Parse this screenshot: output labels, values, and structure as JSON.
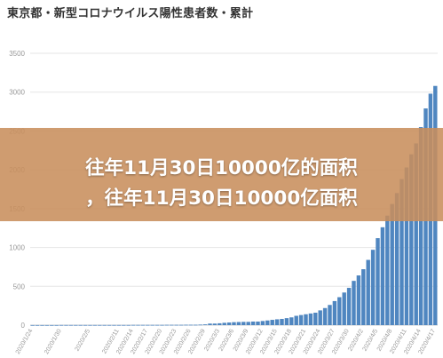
{
  "page": {
    "title": "東京都・新型コロナウイルス陽性患者数・累計"
  },
  "overlay": {
    "line1": "往年11月30日10000亿的面积",
    "line2": "，往年11月30日10000亿面积"
  },
  "colors": {
    "bar": "#4f86c0",
    "overlay": "#c88e5c",
    "grid": "#e6e6e6"
  },
  "chart_data": {
    "type": "bar",
    "title": "東京都・新型コロナウイルス陽性患者数・累計",
    "xlabel": "",
    "ylabel": "",
    "ylim": [
      0,
      3500
    ],
    "yticks": [
      0,
      500,
      1000,
      1500,
      2000,
      2500,
      3000,
      3500
    ],
    "grid": true,
    "x_tick_labels": [
      "2020/1/24",
      "2020/1/30",
      "2020/2/5",
      "2020/2/11",
      "2020/2/14",
      "2020/2/17",
      "2020/2/20",
      "2020/2/23",
      "2020/2/26",
      "2020/2/29",
      "2020/3/3",
      "2020/3/6",
      "2020/3/9",
      "2020/3/12",
      "2020/3/15",
      "2020/3/18",
      "2020/3/21",
      "2020/3/24",
      "2020/3/27",
      "2020/3/30",
      "2020/4/2",
      "2020/4/5",
      "2020/4/8",
      "2020/4/11",
      "2020/4/14",
      "2020/4/17"
    ],
    "categories": [
      "2020/1/24",
      "2020/1/25",
      "2020/1/26",
      "2020/1/27",
      "2020/1/28",
      "2020/1/29",
      "2020/1/30",
      "2020/1/31",
      "2020/2/1",
      "2020/2/2",
      "2020/2/3",
      "2020/2/4",
      "2020/2/5",
      "2020/2/6",
      "2020/2/7",
      "2020/2/8",
      "2020/2/9",
      "2020/2/10",
      "2020/2/11",
      "2020/2/12",
      "2020/2/13",
      "2020/2/14",
      "2020/2/15",
      "2020/2/16",
      "2020/2/17",
      "2020/2/18",
      "2020/2/19",
      "2020/2/20",
      "2020/2/21",
      "2020/2/22",
      "2020/2/23",
      "2020/2/24",
      "2020/2/25",
      "2020/2/26",
      "2020/2/27",
      "2020/2/28",
      "2020/2/29",
      "2020/3/1",
      "2020/3/2",
      "2020/3/3",
      "2020/3/4",
      "2020/3/5",
      "2020/3/6",
      "2020/3/7",
      "2020/3/8",
      "2020/3/9",
      "2020/3/10",
      "2020/3/11",
      "2020/3/12",
      "2020/3/13",
      "2020/3/14",
      "2020/3/15",
      "2020/3/16",
      "2020/3/17",
      "2020/3/18",
      "2020/3/19",
      "2020/3/20",
      "2020/3/21",
      "2020/3/22",
      "2020/3/23",
      "2020/3/24",
      "2020/3/25",
      "2020/3/26",
      "2020/3/27",
      "2020/3/28",
      "2020/3/29",
      "2020/3/30",
      "2020/3/31",
      "2020/4/1",
      "2020/4/2",
      "2020/4/3",
      "2020/4/4",
      "2020/4/5",
      "2020/4/6",
      "2020/4/7",
      "2020/4/8",
      "2020/4/9",
      "2020/4/10",
      "2020/4/11",
      "2020/4/12",
      "2020/4/13",
      "2020/4/14",
      "2020/4/15",
      "2020/4/16",
      "2020/4/17"
    ],
    "values": [
      1,
      1,
      1,
      1,
      1,
      1,
      2,
      2,
      2,
      2,
      2,
      2,
      2,
      2,
      2,
      2,
      2,
      2,
      2,
      2,
      2,
      3,
      3,
      3,
      3,
      3,
      3,
      3,
      4,
      4,
      4,
      4,
      5,
      5,
      5,
      7,
      10,
      20,
      20,
      24,
      30,
      34,
      38,
      40,
      42,
      42,
      46,
      46,
      53,
      60,
      68,
      75,
      80,
      90,
      100,
      120,
      130,
      140,
      150,
      160,
      190,
      220,
      260,
      310,
      360,
      420,
      480,
      570,
      640,
      720,
      840,
      970,
      1120,
      1260,
      1410,
      1560,
      1700,
      1880,
      2030,
      2200,
      2340,
      2550,
      2790,
      2980,
      3080
    ]
  }
}
